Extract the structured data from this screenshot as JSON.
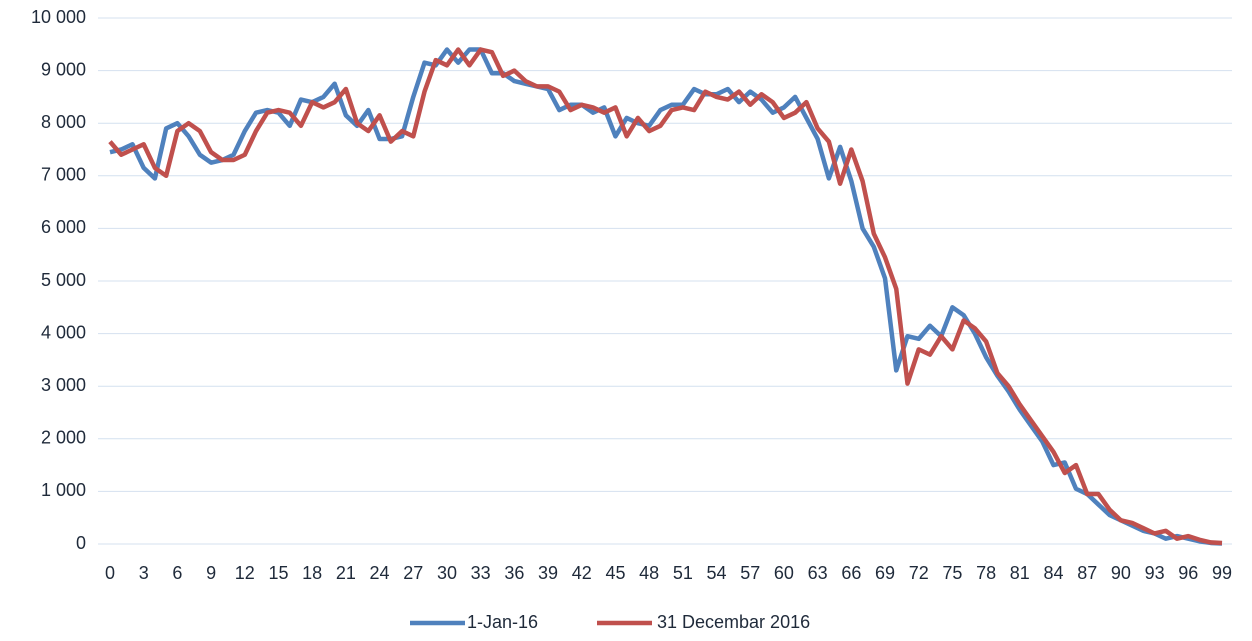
{
  "chart_data": {
    "type": "line",
    "x": [
      0,
      1,
      2,
      3,
      4,
      5,
      6,
      7,
      8,
      9,
      10,
      11,
      12,
      13,
      14,
      15,
      16,
      17,
      18,
      19,
      20,
      21,
      22,
      23,
      24,
      25,
      26,
      27,
      28,
      29,
      30,
      31,
      32,
      33,
      34,
      35,
      36,
      37,
      38,
      39,
      40,
      41,
      42,
      43,
      44,
      45,
      46,
      47,
      48,
      49,
      50,
      51,
      52,
      53,
      54,
      55,
      56,
      57,
      58,
      59,
      60,
      61,
      62,
      63,
      64,
      65,
      66,
      67,
      68,
      69,
      70,
      71,
      72,
      73,
      74,
      75,
      76,
      77,
      78,
      79,
      80,
      81,
      82,
      83,
      84,
      85,
      86,
      87,
      88,
      89,
      90,
      91,
      92,
      93,
      94,
      95,
      96,
      97,
      98,
      99
    ],
    "xlim": [
      0,
      99
    ],
    "xticks": [
      0,
      3,
      6,
      9,
      12,
      15,
      18,
      21,
      24,
      27,
      30,
      33,
      36,
      39,
      42,
      45,
      48,
      51,
      54,
      57,
      60,
      63,
      66,
      69,
      72,
      75,
      78,
      81,
      84,
      87,
      90,
      93,
      96,
      99
    ],
    "ylim": [
      0,
      10000
    ],
    "yticks": [
      0,
      {
        "value": 1000,
        "label": "1 000"
      },
      {
        "value": 2000,
        "label": "2 000"
      },
      {
        "value": 3000,
        "label": "3 000"
      },
      {
        "value": 4000,
        "label": "4 000"
      },
      {
        "value": 5000,
        "label": "5 000"
      },
      {
        "value": 6000,
        "label": "6 000"
      },
      {
        "value": 7000,
        "label": "7 000"
      },
      {
        "value": 8000,
        "label": "8 000"
      },
      {
        "value": 9000,
        "label": "9 000"
      },
      {
        "value": 10000,
        "label": "10 000"
      }
    ],
    "grid": true,
    "legend": "bottom",
    "series": [
      {
        "name": "1-Jan-16",
        "color": "#4f81bd",
        "values": [
          7450,
          7500,
          7600,
          7150,
          6950,
          7900,
          8000,
          7750,
          7400,
          7250,
          7300,
          7400,
          7850,
          8200,
          8250,
          8200,
          7950,
          8450,
          8400,
          8500,
          8750,
          8150,
          7950,
          8250,
          7700,
          7700,
          7750,
          8500,
          9150,
          9100,
          9400,
          9150,
          9400,
          9400,
          8950,
          8950,
          8800,
          8750,
          8700,
          8650,
          8250,
          8350,
          8350,
          8200,
          8300,
          7750,
          8100,
          8000,
          7950,
          8250,
          8350,
          8350,
          8650,
          8550,
          8550,
          8650,
          8400,
          8600,
          8450,
          8200,
          8300,
          8500,
          8100,
          7700,
          6950,
          7550,
          6900,
          6000,
          5650,
          5050,
          3300,
          3950,
          3900,
          4150,
          3950,
          4500,
          4350,
          4000,
          3550,
          3200,
          2900,
          2550,
          2250,
          1950,
          1500,
          1550,
          1050,
          950,
          750,
          550,
          450,
          350,
          250,
          200,
          100,
          150,
          100,
          50,
          20,
          10
        ]
      },
      {
        "name": "31 Decembar 2016",
        "color": "#c0504d",
        "values": [
          7650,
          7400,
          7500,
          7600,
          7150,
          7000,
          7850,
          8000,
          7850,
          7450,
          7300,
          7300,
          7400,
          7850,
          8200,
          8250,
          8200,
          7950,
          8400,
          8300,
          8400,
          8650,
          8000,
          7850,
          8150,
          7650,
          7850,
          7750,
          8600,
          9200,
          9100,
          9400,
          9100,
          9400,
          9350,
          8900,
          9000,
          8800,
          8700,
          8700,
          8600,
          8250,
          8350,
          8300,
          8200,
          8300,
          7750,
          8100,
          7850,
          7950,
          8250,
          8300,
          8250,
          8600,
          8500,
          8450,
          8600,
          8350,
          8550,
          8400,
          8100,
          8200,
          8400,
          7900,
          7650,
          6850,
          7500,
          6900,
          5900,
          5450,
          4850,
          3050,
          3700,
          3600,
          3950,
          3700,
          4250,
          4100,
          3850,
          3250,
          3000,
          2650,
          2350,
          2050,
          1750,
          1350,
          1500,
          950,
          950,
          650,
          450,
          400,
          300,
          200,
          250,
          100,
          150,
          80,
          30,
          20
        ]
      }
    ]
  }
}
